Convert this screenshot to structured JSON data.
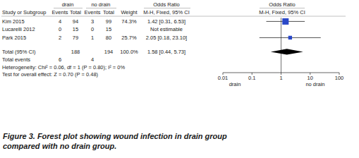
{
  "chart_data": {
    "type": "forest",
    "title": "Figure 3. Forest plot showing wound infection in drain group compared with no drain group.",
    "group_labels": [
      "drain",
      "no drain"
    ],
    "effect_label": "Odds Ratio",
    "columns": [
      "Study or Subgroup",
      "Events",
      "Total",
      "Events",
      "Total",
      "Weight",
      "M-H, Fixed, 95% CI"
    ],
    "studies": [
      {
        "name": "Kim 2015",
        "events_1": 4,
        "total_1": 94,
        "events_2": 3,
        "total_2": 99,
        "weight": 74.3,
        "weight_label": "74.3%",
        "or": 1.42,
        "ci": [
          0.31,
          6.53
        ],
        "or_label": "1.42 [0.31, 6.53]"
      },
      {
        "name": "Lucarelli 2012",
        "events_1": 0,
        "total_1": 15,
        "events_2": 0,
        "total_2": 15,
        "weight": null,
        "weight_label": null,
        "or": null,
        "ci": null,
        "or_label": "Not estimable"
      },
      {
        "name": "Park 2015",
        "events_1": 2,
        "total_1": 79,
        "events_2": 1,
        "total_2": 80,
        "weight": 25.7,
        "weight_label": "25.7%",
        "or": 2.05,
        "ci": [
          0.18,
          23.1
        ],
        "or_label": "2.05 [0.18, 23.10]"
      }
    ],
    "total": {
      "name": "Total (95% CI)",
      "total_1": 188,
      "total_2": 194,
      "weight": 100.0,
      "weight_label": "100.0%",
      "or": 1.58,
      "ci": [
        0.44,
        5.73
      ],
      "or_label": "1.58 [0.44, 5.73]"
    },
    "total_events": {
      "name": "Total events",
      "events_1": 6,
      "events_2": 4
    },
    "heterogeneity": "Heterogeneity: Chi² = 0.06, df = 1 (P = 0.80); I² = 0%",
    "overall_effect": "Test for overall effect: Z = 0.70 (P = 0.48)",
    "log": "x",
    "xlim": [
      0.01,
      100
    ],
    "xticks": [
      0.01,
      0.1,
      1,
      10,
      100
    ],
    "reference_line": 1,
    "color": "#2a48c8"
  }
}
